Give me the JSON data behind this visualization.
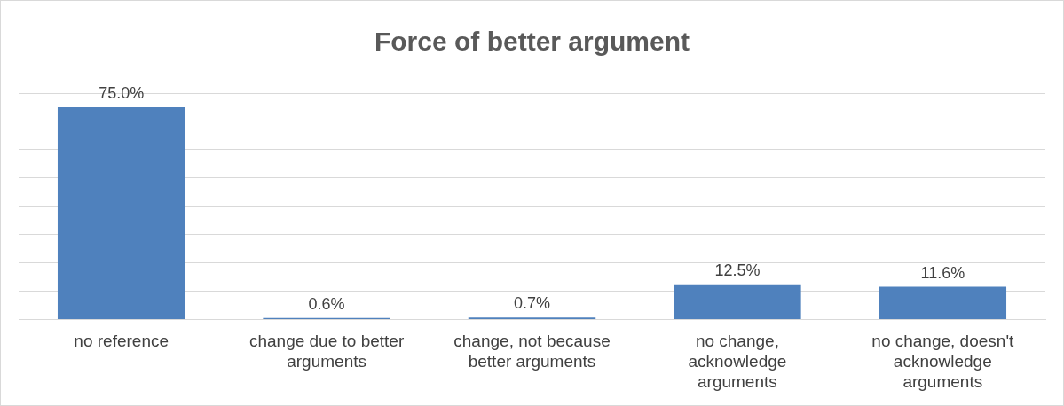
{
  "chart_data": {
    "type": "bar",
    "title": "Force of better argument",
    "categories": [
      "no reference",
      "change due to better arguments",
      "change, not because better arguments",
      "no change, acknowledge arguments",
      "no change, doesn't acknowledge arguments"
    ],
    "values": [
      75.0,
      0.6,
      0.7,
      12.5,
      11.6
    ],
    "value_labels": [
      "75.0%",
      "0.6%",
      "0.7%",
      "12.5%",
      "11.6%"
    ],
    "color": "#4f81bd",
    "ylim": [
      0,
      80
    ],
    "yticks": [
      {
        "value": 0,
        "label": null
      },
      {
        "value": 10,
        "label": null
      },
      {
        "value": 20,
        "label": null
      },
      {
        "value": 30,
        "label": null
      },
      {
        "value": 40,
        "label": null
      },
      {
        "value": 50,
        "label": null
      },
      {
        "value": 60,
        "label": null
      },
      {
        "value": 70,
        "label": null
      },
      {
        "value": 80,
        "label": null
      }
    ],
    "grid": "y",
    "tick_labels": "x",
    "legend": false
  }
}
